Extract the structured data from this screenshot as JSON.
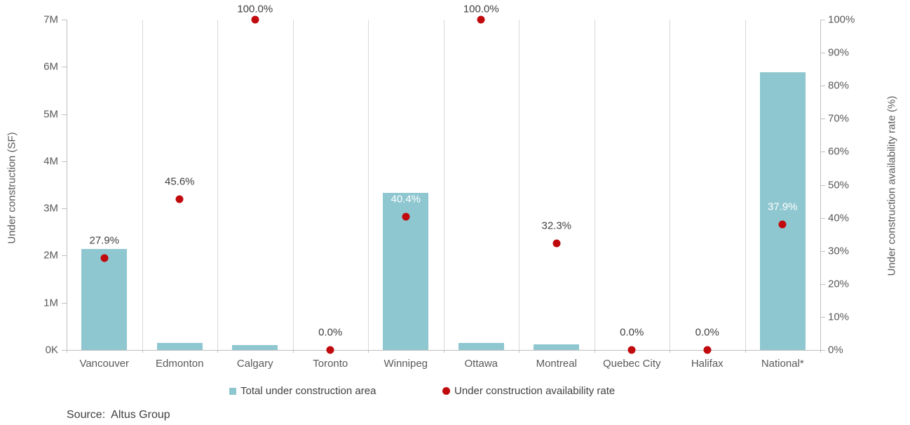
{
  "chart_data": {
    "type": "combo-bar-scatter",
    "categories": [
      "Vancouver",
      "Edmonton",
      "Calgary",
      "Toronto",
      "Winnipeg",
      "Ottawa",
      "Montreal",
      "Quebec City",
      "Halifax",
      "National*"
    ],
    "series": [
      {
        "name": "Total under construction area",
        "type": "bar",
        "axis": "left",
        "color": "#8fc7d0",
        "values": [
          2140000,
          150000,
          110000,
          0,
          3330000,
          155000,
          125000,
          0,
          0,
          5880000
        ]
      },
      {
        "name": "Under construction availability rate",
        "type": "scatter",
        "axis": "right",
        "color": "#c00a0d",
        "values": [
          27.9,
          45.6,
          100.0,
          0.0,
          40.4,
          100.0,
          32.3,
          0.0,
          0.0,
          37.9
        ],
        "point_labels": [
          "27.9%",
          "45.6%",
          "100.0%",
          "0.0%",
          "40.4%",
          "100.0%",
          "32.3%",
          "0.0%",
          "0.0%",
          "37.9%"
        ]
      }
    ],
    "left_axis": {
      "title": "Under construction (SF)",
      "tick_labels": [
        "0K",
        "1M",
        "2M",
        "3M",
        "4M",
        "5M",
        "6M",
        "7M"
      ],
      "min": 0,
      "max": 7000000
    },
    "right_axis": {
      "title": "Under construction availability rate (%)",
      "tick_labels": [
        "0%",
        "10%",
        "20%",
        "30%",
        "40%",
        "50%",
        "60%",
        "70%",
        "80%",
        "90%",
        "100%"
      ],
      "min": 0,
      "max": 100
    },
    "grid": "vertical-category-separators",
    "legend_position": "bottom",
    "label_colors": {
      "outside": "#404040",
      "on_bar": "#ffffff"
    }
  },
  "source_note": "Source:  Altus Group"
}
